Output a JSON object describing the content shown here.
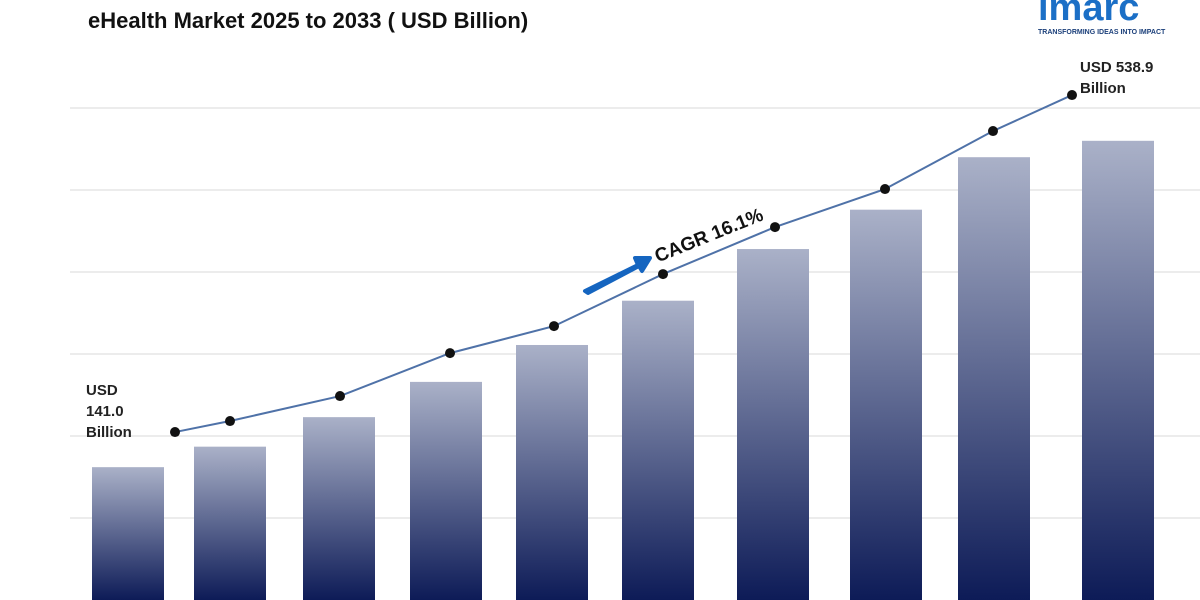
{
  "chart_data": {
    "type": "bar",
    "title": "eHealth Market 2025 to 2033 ( USD Billion)",
    "categories": [
      null,
      null,
      null,
      null,
      null,
      null,
      null,
      null,
      null,
      null
    ],
    "series": [
      {
        "type": "bar",
        "gradient": [
          "#aab1c8",
          "#0d1b57"
        ],
        "values": [
          162,
          187,
          223,
          266,
          311,
          365,
          428,
          476,
          540,
          560
        ]
      },
      {
        "type": "line",
        "axis": "y2",
        "color": "#4f72a8",
        "values": [
          141.0,
          154.0,
          183.5,
          234.2,
          266.1,
          327.5,
          383.0,
          427.9,
          496.4,
          538.9
        ],
        "value_labels": [
          "USD 141.0 Billion",
          null,
          null,
          null,
          null,
          null,
          null,
          null,
          null,
          "USD 538.9 Billion"
        ]
      }
    ],
    "ylim": [
      0,
      600
    ],
    "yticks": [
      100,
      200,
      300,
      400,
      500,
      600
    ],
    "y2lim": [
      -57.3,
      523.6
    ],
    "grid": true,
    "annotation": "CAGR 16.1%"
  },
  "logo": {
    "name": "imarc",
    "tagline": "TRANSFORMING IDEAS INTO IMPACT"
  }
}
